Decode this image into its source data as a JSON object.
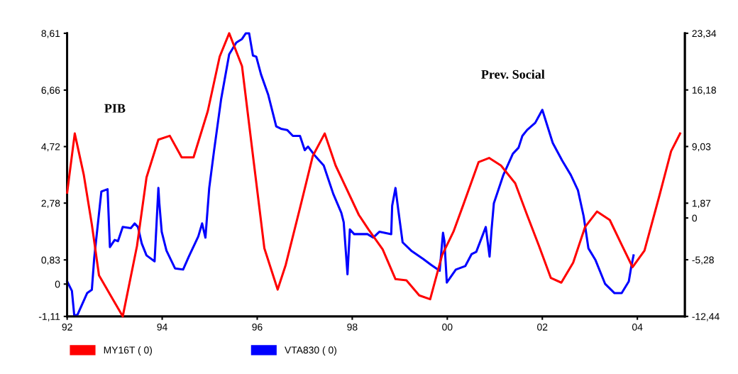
{
  "chart_data": {
    "type": "line",
    "annotations": [
      "PIB",
      "Prev. Social"
    ],
    "xlim": [
      1992,
      2005
    ],
    "xticks": [
      {
        "value": 1992,
        "label": "92"
      },
      {
        "value": 1994,
        "label": "94"
      },
      {
        "value": 1996,
        "label": "96"
      },
      {
        "value": 1998,
        "label": "98"
      },
      {
        "value": 2000,
        "label": "00"
      },
      {
        "value": 2002,
        "label": "02"
      },
      {
        "value": 2004,
        "label": "04"
      }
    ],
    "ylim": [
      -1.11,
      8.61
    ],
    "yticks": [
      {
        "value": -1.11,
        "label": "-1,11"
      },
      {
        "value": 0,
        "label": "0"
      },
      {
        "value": 0.83,
        "label": "0,83"
      },
      {
        "value": 2.78,
        "label": "2,78"
      },
      {
        "value": 4.72,
        "label": "4,72"
      },
      {
        "value": 6.66,
        "label": "6,66"
      },
      {
        "value": 8.61,
        "label": "8,61"
      }
    ],
    "y2lim": [
      -12.44,
      23.34
    ],
    "y2ticks": [
      {
        "value": -12.44,
        "label": "-12,44"
      },
      {
        "value": -5.28,
        "label": "-5,28"
      },
      {
        "value": 0,
        "label": "0"
      },
      {
        "value": 1.87,
        "label": "1,87"
      },
      {
        "value": 9.03,
        "label": "9,03"
      },
      {
        "value": 16.18,
        "label": "16,18"
      },
      {
        "value": 23.34,
        "label": "23,34"
      }
    ],
    "grid": false,
    "legend": "bottom",
    "marker": "none",
    "line_style": "solid",
    "series": [
      {
        "name": "MY16T ( 0)",
        "color": "#ff0000",
        "axis": "y",
        "x": [
          1992.0,
          1992.16,
          1992.35,
          1992.52,
          1992.67,
          1992.97,
          1993.17,
          1993.47,
          1993.67,
          1993.92,
          1994.16,
          1994.41,
          1994.66,
          1994.96,
          1995.21,
          1995.41,
          1995.68,
          1995.93,
          1996.15,
          1996.43,
          1996.6,
          1996.9,
          1997.17,
          1997.42,
          1997.65,
          1998.14,
          1998.34,
          1998.64,
          1998.91,
          1999.14,
          1999.41,
          1999.64,
          1999.89,
          2000.13,
          2000.33,
          2000.66,
          2000.88,
          2001.13,
          2001.43,
          2001.68,
          2001.93,
          2002.18,
          2002.4,
          2002.65,
          2002.9,
          2003.15,
          2003.42,
          2003.67,
          2003.9,
          2004.15,
          2004.46,
          2004.71,
          2004.9
        ],
        "values": [
          3.14,
          5.17,
          3.75,
          2.04,
          0.3,
          -0.55,
          -1.11,
          1.31,
          3.66,
          4.96,
          5.09,
          4.35,
          4.35,
          5.94,
          7.81,
          8.61,
          7.48,
          4.15,
          1.23,
          -0.19,
          0.66,
          2.61,
          4.4,
          5.17,
          4.07,
          2.37,
          1.88,
          1.19,
          0.17,
          0.13,
          -0.39,
          -0.52,
          0.99,
          1.8,
          2.69,
          4.19,
          4.33,
          4.07,
          3.46,
          2.37,
          1.31,
          0.21,
          0.05,
          0.74,
          1.96,
          2.49,
          2.2,
          1.35,
          0.58,
          1.15,
          3.01,
          4.56,
          5.17
        ]
      },
      {
        "name": "VTA830 ( 0)",
        "color": "#0000ff",
        "axis": "y2",
        "x": [
          1992.0,
          1992.1,
          1992.15,
          1992.22,
          1992.42,
          1992.52,
          1992.57,
          1992.72,
          1992.85,
          1992.9,
          1993.0,
          1993.07,
          1993.17,
          1993.34,
          1993.42,
          1993.49,
          1993.57,
          1993.67,
          1993.84,
          1993.92,
          1993.94,
          1993.99,
          1994.09,
          1994.27,
          1994.44,
          1994.56,
          1994.76,
          1994.84,
          1994.91,
          1994.99,
          1995.09,
          1995.24,
          1995.41,
          1995.56,
          1995.68,
          1995.76,
          1995.83,
          1995.91,
          1995.98,
          1996.08,
          1996.23,
          1996.4,
          1996.5,
          1996.63,
          1996.75,
          1996.9,
          1997.0,
          1997.07,
          1997.2,
          1997.4,
          1997.6,
          1997.77,
          1997.82,
          1997.9,
          1997.95,
          1998.04,
          1998.32,
          1998.44,
          1998.57,
          1998.82,
          1998.84,
          1998.91,
          1998.97,
          1999.06,
          1999.24,
          1999.49,
          1999.66,
          1999.84,
          1999.91,
          1999.94,
          1999.99,
          2000.18,
          2000.38,
          2000.51,
          2000.61,
          2000.81,
          2000.89,
          2000.93,
          2000.98,
          2001.18,
          2001.38,
          2001.5,
          2001.58,
          2001.68,
          2001.85,
          2002.0,
          2002.22,
          2002.42,
          2002.6,
          2002.75,
          2002.87,
          2002.97,
          2003.12,
          2003.32,
          2003.52,
          2003.67,
          2003.82,
          2003.87,
          2003.92
        ],
        "values": [
          -8.02,
          -9.21,
          -12.35,
          -12.2,
          -9.5,
          -9.06,
          -5.02,
          3.34,
          3.64,
          -3.68,
          -2.78,
          -2.93,
          -1.14,
          -1.29,
          -0.69,
          -1.14,
          -3.23,
          -4.73,
          -5.48,
          3.79,
          1.85,
          -1.74,
          -4.13,
          -6.37,
          -6.52,
          -4.88,
          -2.33,
          -0.69,
          -2.48,
          3.79,
          8.43,
          15.0,
          20.68,
          22.17,
          22.62,
          23.34,
          23.34,
          20.53,
          20.38,
          18.14,
          15.6,
          11.57,
          11.27,
          11.12,
          10.37,
          10.37,
          8.57,
          9.02,
          7.98,
          6.63,
          3.05,
          0.65,
          -0.54,
          -7.12,
          -1.44,
          -2.04,
          -2.04,
          -2.48,
          -1.74,
          -2.04,
          1.55,
          3.79,
          0.95,
          -3.08,
          -4.13,
          -5.17,
          -5.92,
          -6.67,
          -1.88,
          -2.93,
          -8.16,
          -6.52,
          -6.07,
          -4.58,
          -4.28,
          -1.14,
          -4.88,
          -1.59,
          1.85,
          5.43,
          8.12,
          8.88,
          10.37,
          11.12,
          12.02,
          13.66,
          9.47,
          7.23,
          5.43,
          3.5,
          0.21,
          -3.83,
          -5.33,
          -8.31,
          -9.5,
          -9.5,
          -8.02,
          -6.22,
          -4.73
        ]
      }
    ]
  }
}
